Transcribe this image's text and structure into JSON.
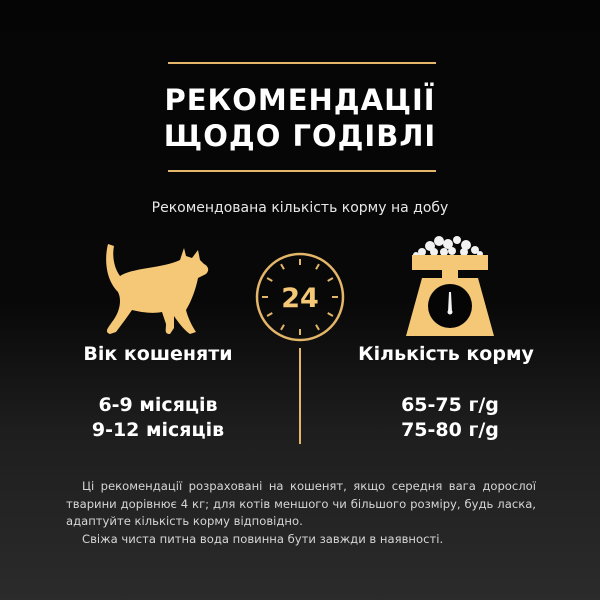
{
  "header": {
    "title_line1": "РЕКОМЕНДАЦІЇ",
    "title_line2": "ЩОДО ГОДІВЛІ",
    "subtitle": "Рекомендована кількість корму на добу"
  },
  "clock": {
    "label": "24",
    "icon": "clock-24h-icon"
  },
  "left": {
    "icon": "cat-icon",
    "label": "Вік кошеняти",
    "values": [
      "6-9 місяців",
      "9-12 місяців"
    ]
  },
  "right": {
    "icon": "scale-icon",
    "label": "Кількість корму",
    "values": [
      "65-75 г/g",
      "75-80 г/g"
    ]
  },
  "note": {
    "paragraph1": "Ці рекомендації розраховані на кошенят, якщо середня вага дорослої тварини дорівнює 4 кг; для котів меншого чи більшого розміру, будь ласка, адаптуйте кількість корму відповідно.",
    "paragraph2": "Свіжа чиста питна вода повинна бути завжди в наявності."
  },
  "colors": {
    "accent": "#f5c878",
    "line": "#e3b66a",
    "background": "#050505"
  }
}
